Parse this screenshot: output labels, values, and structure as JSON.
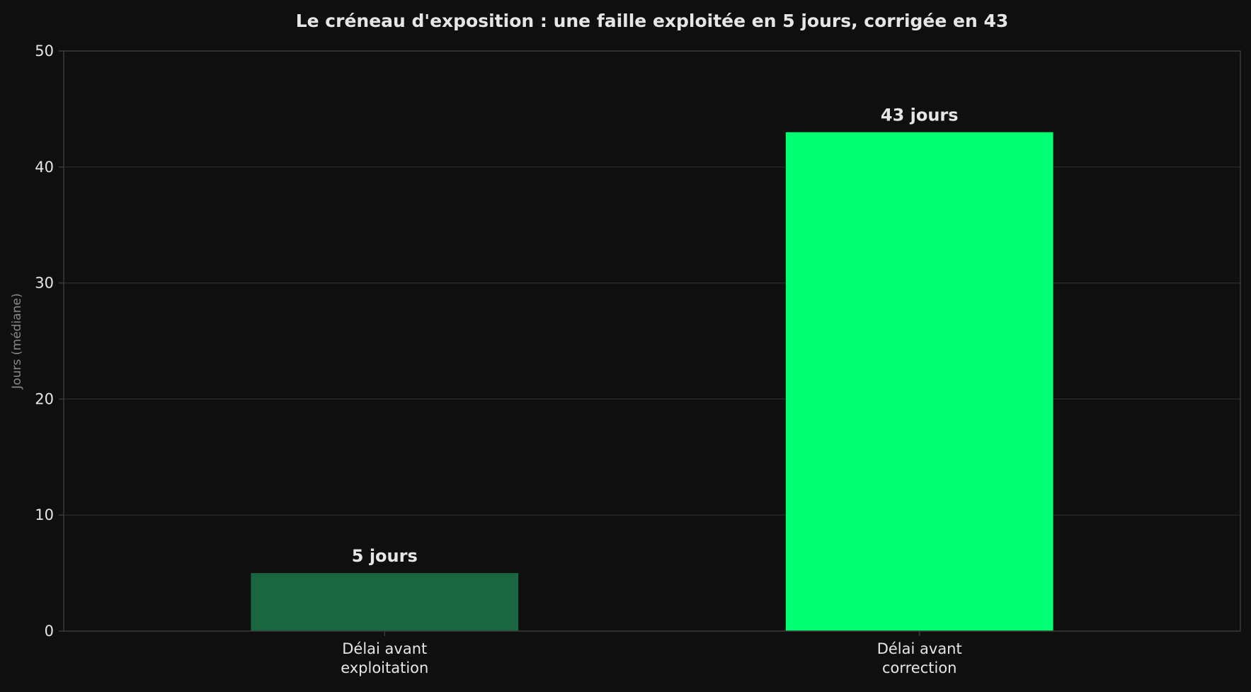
{
  "chart_data": {
    "type": "bar",
    "title": "Le créneau d'exposition : une faille exploitée en 5 jours, corrigée en 43",
    "xlabel": "",
    "ylabel": "Jours (médiane)",
    "categories": [
      "Délai avant\nexploitation",
      "Délai avant\ncorrection"
    ],
    "values": [
      5,
      43
    ],
    "data_labels": [
      "5 jours",
      "43 jours"
    ],
    "bar_colors": [
      "#1a6641",
      "#00ff73"
    ],
    "ylim": [
      0,
      50
    ],
    "yticks": [
      0,
      10,
      20,
      30,
      40,
      50
    ],
    "grid": true,
    "legend": "none"
  },
  "colors": {
    "background": "#0f0f0f",
    "text": "#e6e6e6",
    "muted_text": "#8a8a8a",
    "grid": "#2c2c2c",
    "axis": "#3a3a3a"
  }
}
